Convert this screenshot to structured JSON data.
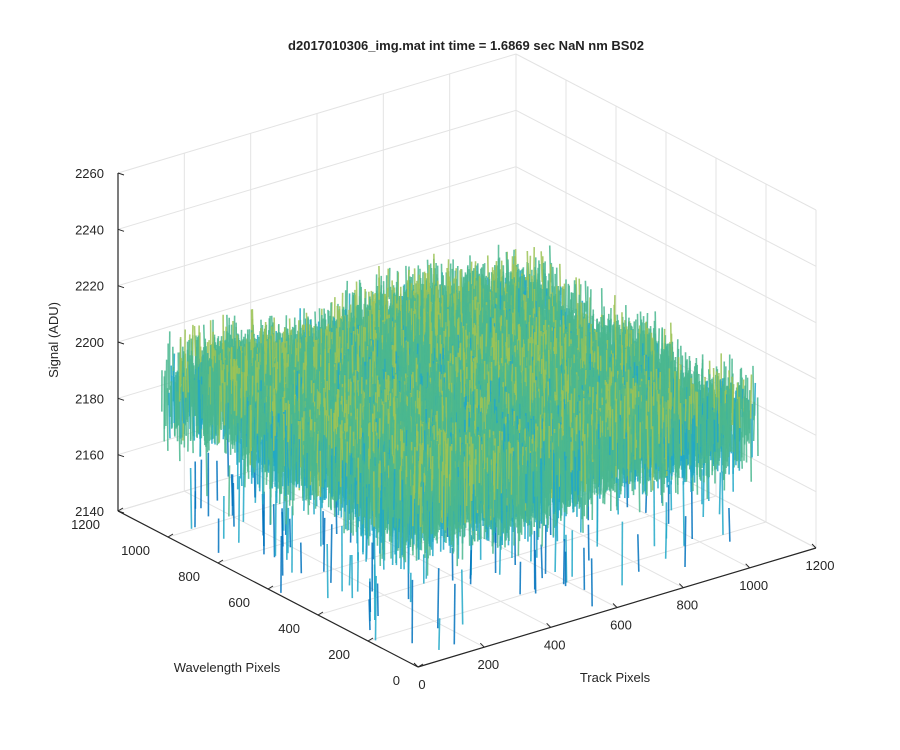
{
  "chart_data": {
    "type": "surface",
    "title": "d2017010306_img.mat int time = 1.6869 sec  NaN nm BS02",
    "xlabel": "Track Pixels",
    "ylabel": "Wavelength Pixels",
    "zlabel": "Signal (ADU)",
    "xlim": [
      0,
      1200
    ],
    "ylim": [
      0,
      1200
    ],
    "zlim": [
      2140,
      2260
    ],
    "xticks": [
      "0",
      "200",
      "400",
      "600",
      "800",
      "1000",
      "1200"
    ],
    "yticks": [
      "0",
      "200",
      "400",
      "600",
      "800",
      "1000",
      "1200"
    ],
    "zticks": [
      "2140",
      "2160",
      "2180",
      "2200",
      "2220",
      "2240",
      "2260"
    ],
    "surface": {
      "x_extent": [
        0,
        1024
      ],
      "y_extent": [
        0,
        1024
      ],
      "signal_mean": 2200,
      "signal_range": [
        2155,
        2250
      ],
      "colormap": [
        "#0072bd",
        "#21a8c8",
        "#4ab78f",
        "#9cc356",
        "#e6c43c"
      ]
    },
    "grid": true,
    "view": "3d"
  }
}
